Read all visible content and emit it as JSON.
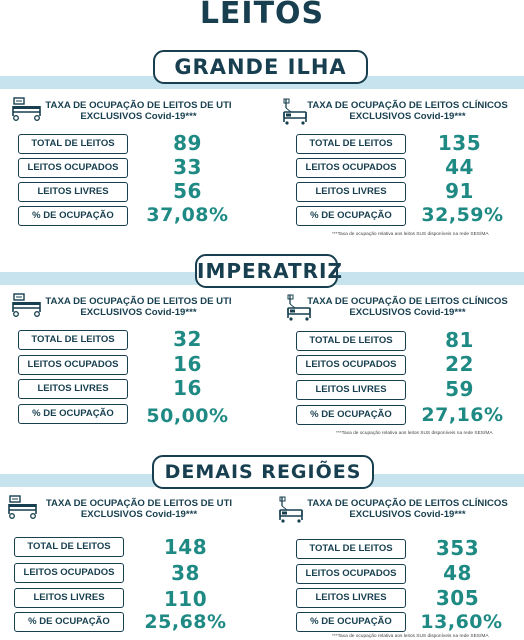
{
  "title": "LEITOS",
  "regions": [
    {
      "name": "GRANDE ILHA",
      "uti": {
        "header_line1": "TAXA DE OCUPAÇÃO DE LEITOS DE UTI",
        "header_line2": "EXCLUSIVOS Covid-19***",
        "icon": "hospital-bed-icon",
        "rows": [
          {
            "label": "TOTAL DE LEITOS",
            "value": "89"
          },
          {
            "label": "LEITOS OCUPADOS",
            "value": "33"
          },
          {
            "label": "LEITOS LIVRES",
            "value": "56"
          },
          {
            "label": "% DE OCUPAÇÃO",
            "value": "37,08%"
          }
        ]
      },
      "clinicos": {
        "header_line1": "TAXA DE OCUPAÇÃO DE LEITOS CLÍNICOS",
        "header_line2": "EXCLUSIVOS Covid-19***",
        "icon": "clinical-bed-icon",
        "rows": [
          {
            "label": "TOTAL DE LEITOS",
            "value": "135"
          },
          {
            "label": "LEITOS OCUPADOS",
            "value": "44"
          },
          {
            "label": "LEITOS LIVRES",
            "value": "91"
          },
          {
            "label": "% DE OCUPAÇÃO",
            "value": "32,59%"
          }
        ]
      },
      "footnote": "***Taxa de ocupação relativa aos leitos SUS disponíveis na rede SES/MA"
    },
    {
      "name": "IMPERATRIZ",
      "uti": {
        "header_line1": "TAXA DE OCUPAÇÃO DE LEITOS DE UTI",
        "header_line2": "EXCLUSIVOS Covid-19***",
        "icon": "hospital-bed-icon",
        "rows": [
          {
            "label": "TOTAL DE LEITOS",
            "value": "32"
          },
          {
            "label": "LEITOS OCUPADOS",
            "value": "16"
          },
          {
            "label": "LEITOS LIVRES",
            "value": "16"
          },
          {
            "label": "% DE OCUPAÇÃO",
            "value": "50,00%"
          }
        ]
      },
      "clinicos": {
        "header_line1": "TAXA DE OCUPAÇÃO DE LEITOS CLÍNICOS",
        "header_line2": "EXCLUSIVOS Covid-19***",
        "icon": "clinical-bed-icon",
        "rows": [
          {
            "label": "TOTAL DE LEITOS",
            "value": "81"
          },
          {
            "label": "LEITOS OCUPADOS",
            "value": "22"
          },
          {
            "label": "LEITOS LIVRES",
            "value": "59"
          },
          {
            "label": "% DE OCUPAÇÃO",
            "value": "27,16%"
          }
        ]
      },
      "footnote": "***Taxa de ocupação relativa aos leitos SUS disponíveis na rede SES/MA"
    },
    {
      "name": "DEMAIS REGIÕES",
      "uti": {
        "header_line1": "TAXA DE OCUPAÇÃO DE LEITOS DE UTI",
        "header_line2": "EXCLUSIVOS Covid-19***",
        "icon": "hospital-bed-icon",
        "rows": [
          {
            "label": "TOTAL DE LEITOS",
            "value": "148"
          },
          {
            "label": "LEITOS OCUPADOS",
            "value": "38"
          },
          {
            "label": "LEITOS LIVRES",
            "value": "110"
          },
          {
            "label": "% DE OCUPAÇÃO",
            "value": "25,68%"
          }
        ]
      },
      "clinicos": {
        "header_line1": "TAXA DE OCUPAÇÃO DE LEITOS CLÍNICOS",
        "header_line2": "EXCLUSIVOS Covid-19***",
        "icon": "clinical-bed-icon",
        "rows": [
          {
            "label": "TOTAL DE LEITOS",
            "value": "353"
          },
          {
            "label": "LEITOS OCUPADOS",
            "value": "48"
          },
          {
            "label": "LEITOS LIVRES",
            "value": "305"
          },
          {
            "label": "% DE OCUPAÇÃO",
            "value": "13,60%"
          }
        ]
      },
      "footnote": "***Taxa de ocupação relativa aos leitos SUS disponíveis na rede SES/MA"
    }
  ],
  "colors": {
    "navy": "#173f4f",
    "teal": "#1f8a84",
    "band": "#c7e3ee"
  }
}
